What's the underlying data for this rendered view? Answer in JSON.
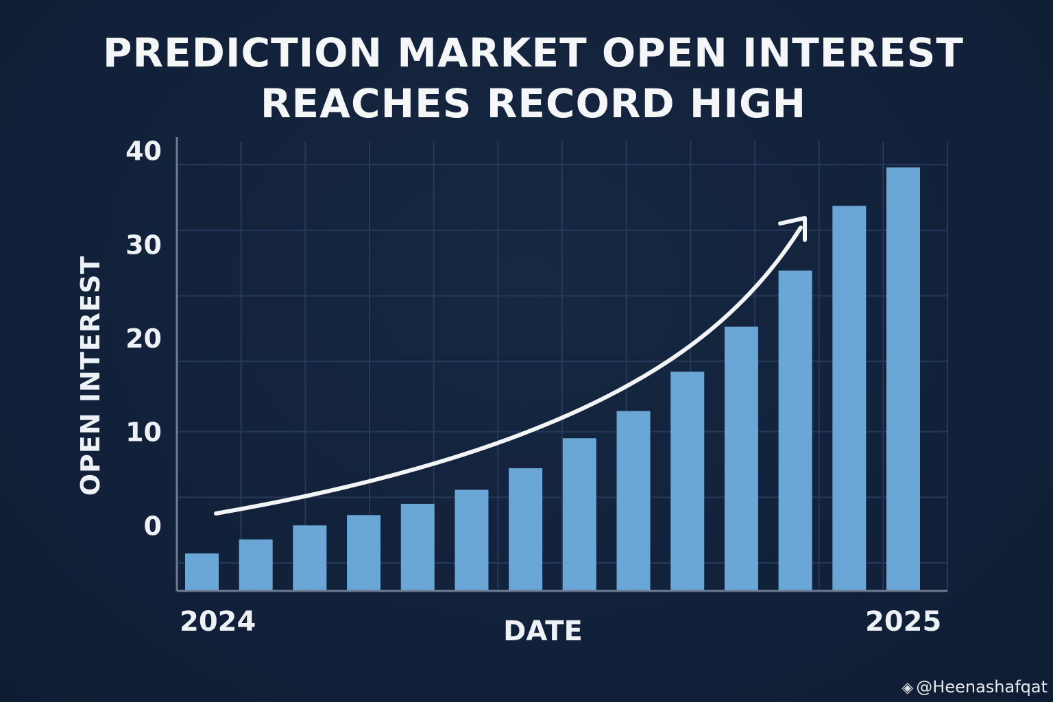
{
  "chart_data": {
    "type": "bar",
    "title": "PREDICTION MARKET OPEN INTEREST REACHES RECORD HIGH",
    "title_lines": [
      "PREDICTION MARKET OPEN INTEREST",
      "REACHES RECORD HIGH"
    ],
    "xlabel": "DATE",
    "ylabel": "OPEN INTEREST",
    "x_start_label": "2024",
    "x_end_label": "2025",
    "yticks": [
      0,
      10,
      20,
      30,
      40
    ],
    "ylim": [
      -7,
      41
    ],
    "values": [
      -3,
      -1.5,
      0,
      1.1,
      2.3,
      3.8,
      6.1,
      9.3,
      12.2,
      16.4,
      21.2,
      27.2,
      34.1,
      38.2
    ],
    "grid": true,
    "trend_arrow": true,
    "bar_color": "#6aa6d6",
    "grid_color": "#27395a",
    "axis_color": "#6d7c93",
    "background_color": "#14233a"
  },
  "watermark": {
    "icon": "binance-diamond-icon",
    "text": "@Heenashafqat"
  }
}
